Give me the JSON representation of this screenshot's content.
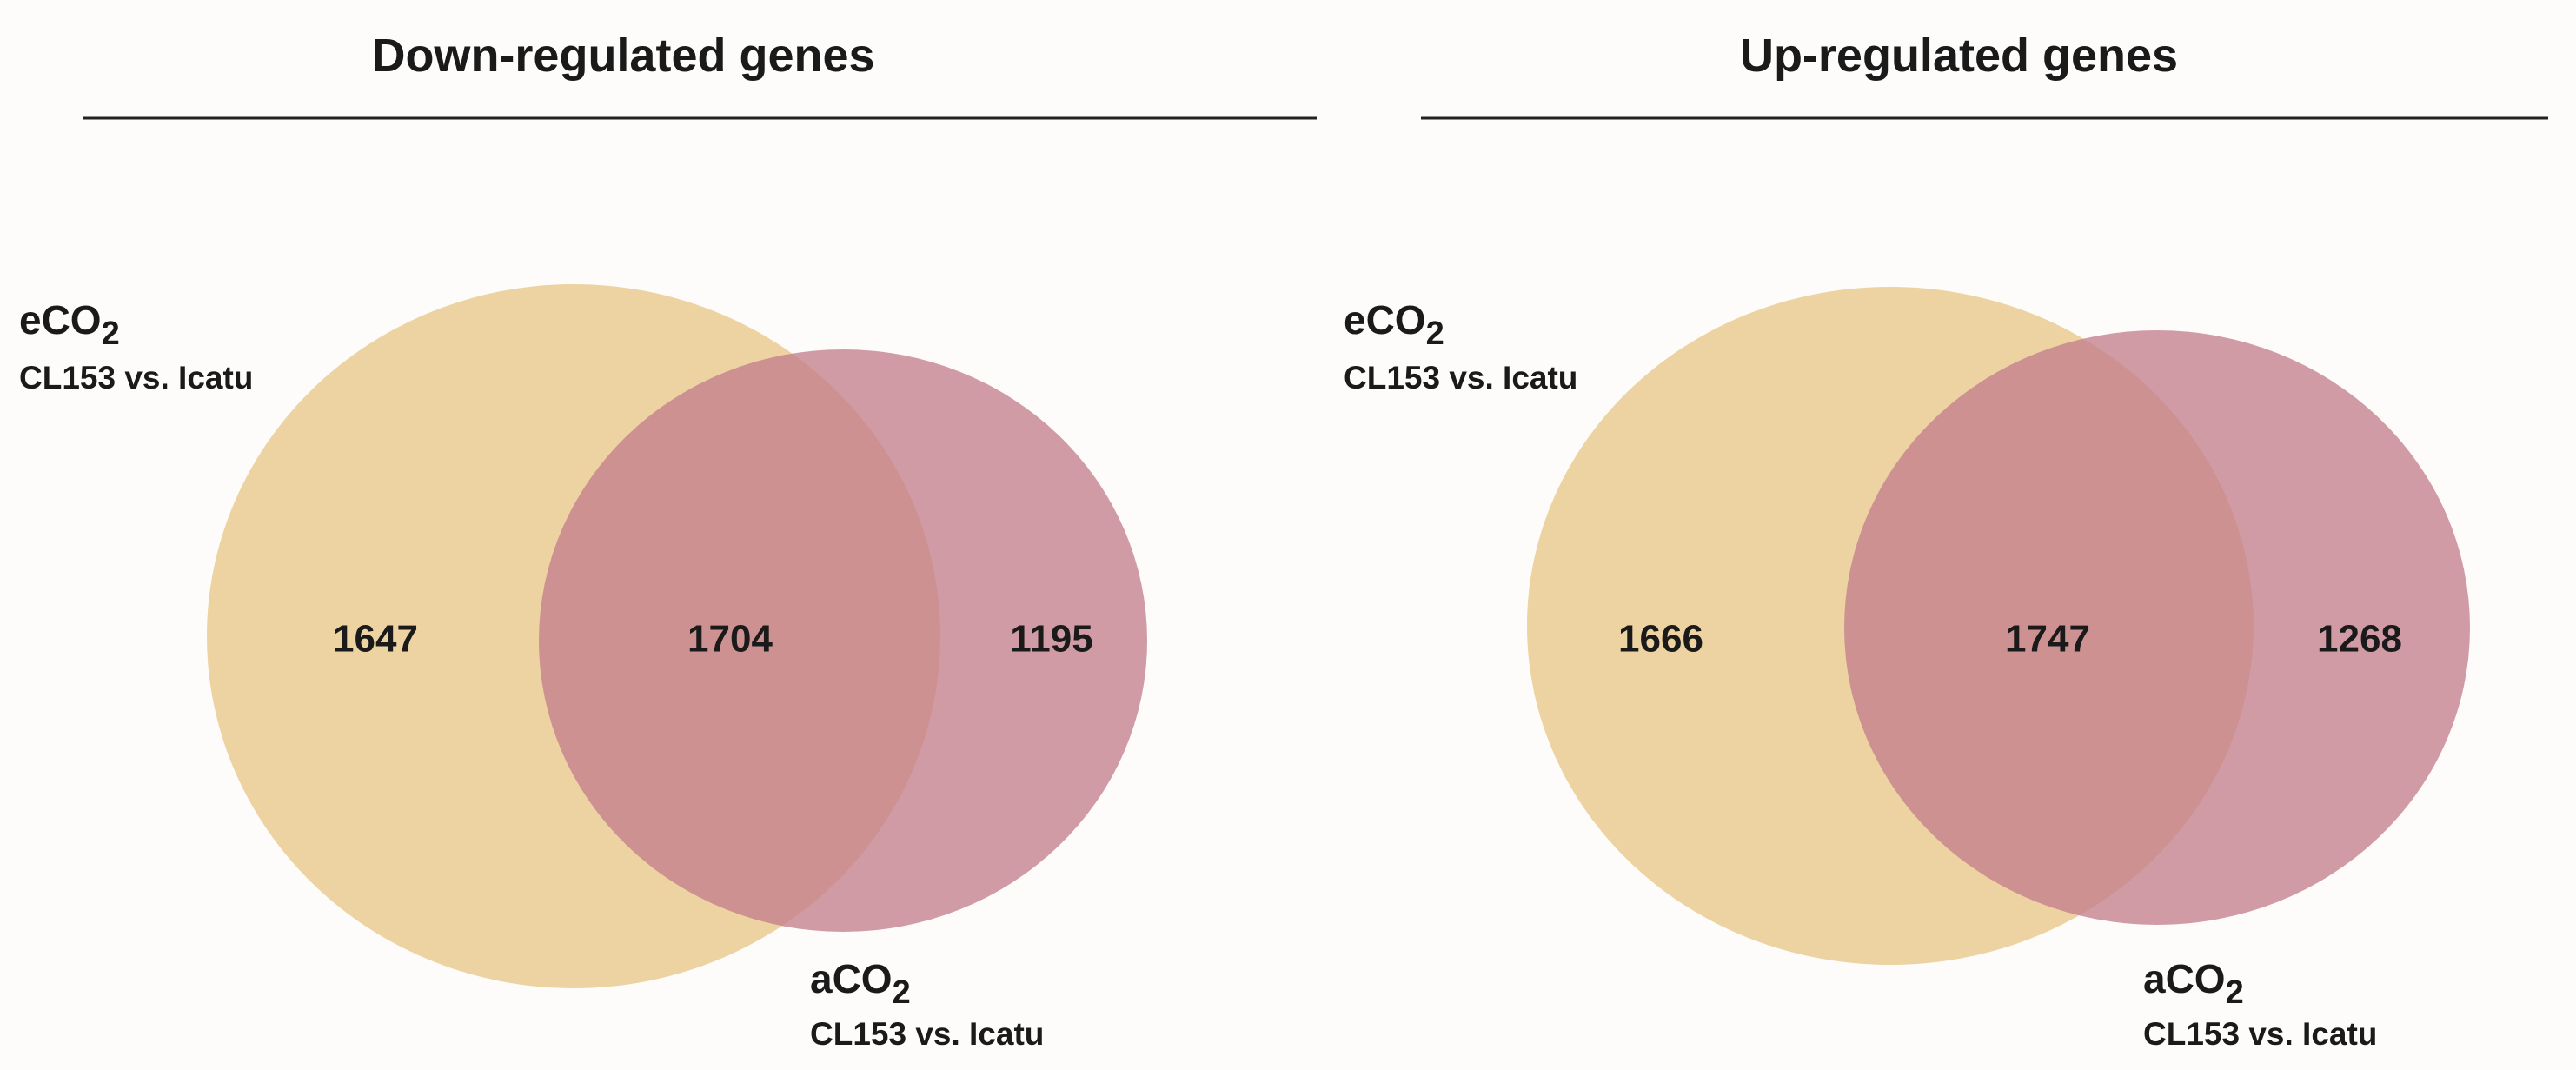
{
  "panels": [
    {
      "title": "Down-regulated genes",
      "set_a": {
        "label_main": "eCO",
        "label_sub": "2",
        "label_line2": "CL153 vs. Icatu",
        "color": "#e8c98d"
      },
      "set_b": {
        "label_main": "aCO",
        "label_sub": "2",
        "label_line2": "CL153 vs. Icatu",
        "color": "#c47f8e"
      },
      "counts": {
        "only_a": "1647",
        "both": "1704",
        "only_b": "1195"
      }
    },
    {
      "title": "Up-regulated genes",
      "set_a": {
        "label_main": "eCO",
        "label_sub": "2",
        "label_line2": "CL153 vs. Icatu",
        "color": "#e8c98d"
      },
      "set_b": {
        "label_main": "aCO",
        "label_sub": "2",
        "label_line2": "CL153 vs. Icatu",
        "color": "#c47f8e"
      },
      "counts": {
        "only_a": "1666",
        "both": "1747",
        "only_b": "1268"
      }
    }
  ]
}
